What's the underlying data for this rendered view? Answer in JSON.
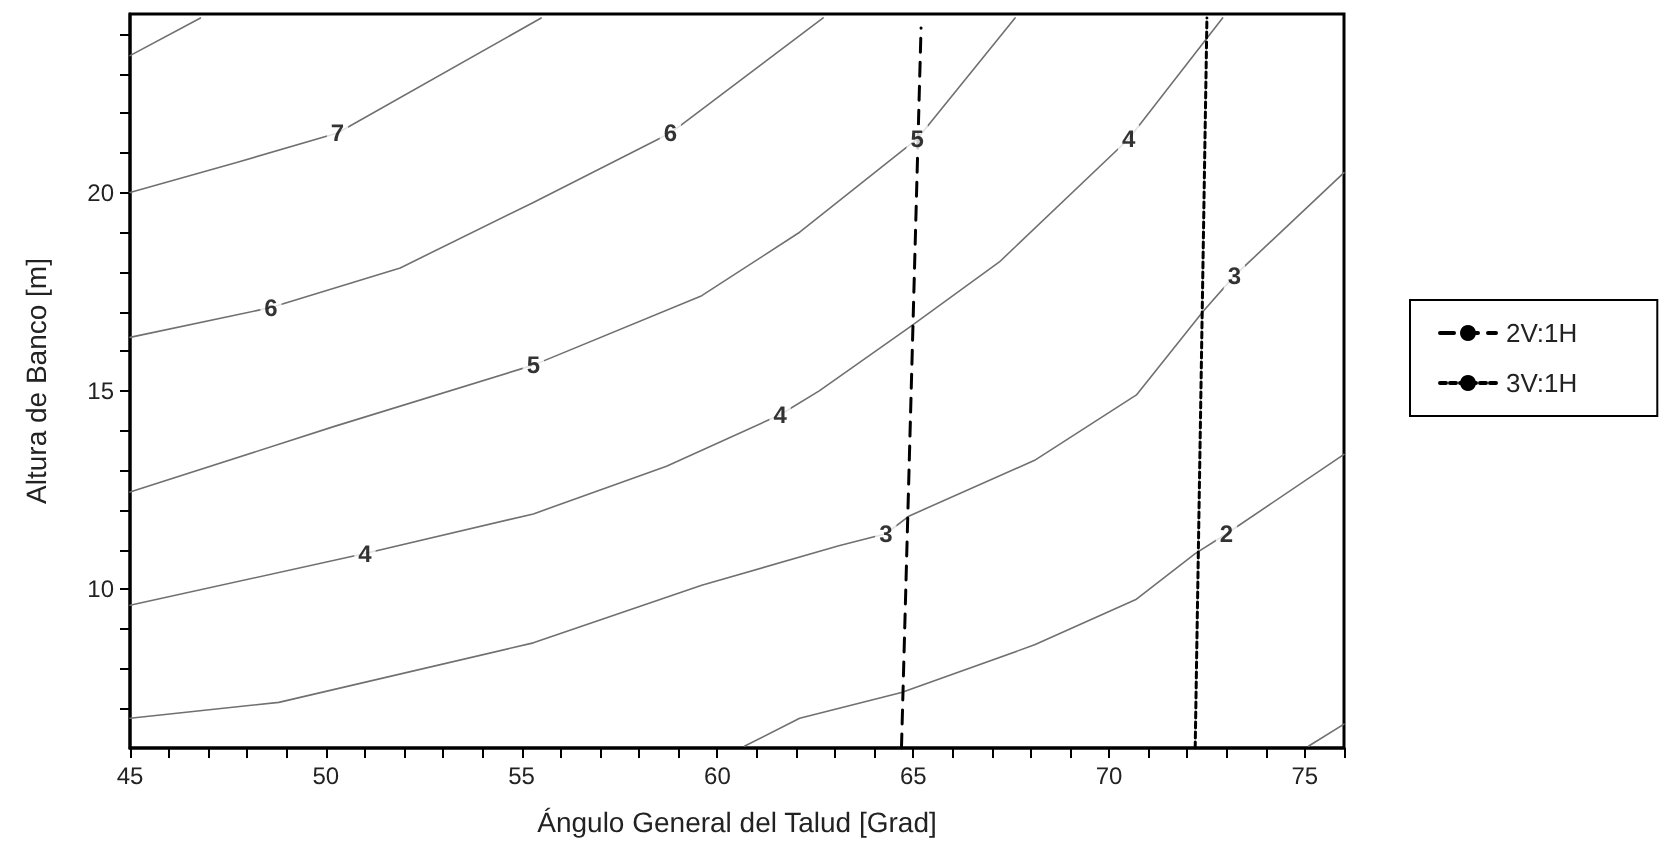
{
  "chart_data": {
    "type": "line",
    "xlabel": "Ángulo General del Talud [Grad]",
    "ylabel": "Altura de Banco [m]",
    "xlim": [
      45,
      76
    ],
    "ylim": [
      6,
      24.5
    ],
    "xticks": [
      45,
      {
        "value": 46,
        "label": null
      },
      {
        "value": 47,
        "label": null
      },
      {
        "value": 48,
        "label": null
      },
      {
        "value": 49,
        "label": null
      },
      50,
      {
        "value": 51,
        "label": null
      },
      {
        "value": 52,
        "label": null
      },
      {
        "value": 53,
        "label": null
      },
      {
        "value": 54,
        "label": null
      },
      55,
      {
        "value": 56,
        "label": null
      },
      {
        "value": 57,
        "label": null
      },
      {
        "value": 58,
        "label": null
      },
      {
        "value": 59,
        "label": null
      },
      60,
      {
        "value": 61,
        "label": null
      },
      {
        "value": 62,
        "label": null
      },
      {
        "value": 63,
        "label": null
      },
      {
        "value": 64,
        "label": null
      },
      65,
      {
        "value": 66,
        "label": null
      },
      {
        "value": 67,
        "label": null
      },
      {
        "value": 68,
        "label": null
      },
      {
        "value": 69,
        "label": null
      },
      70,
      {
        "value": 71,
        "label": null
      },
      {
        "value": 72,
        "label": null
      },
      {
        "value": 73,
        "label": null
      },
      {
        "value": 74,
        "label": null
      },
      75,
      {
        "value": 76,
        "label": null
      }
    ],
    "yticks": [
      {
        "value": 7,
        "label": null
      },
      {
        "value": 8,
        "label": null
      },
      {
        "value": 9,
        "label": null
      },
      10,
      {
        "value": 11,
        "label": null
      },
      {
        "value": 12,
        "label": null
      },
      {
        "value": 13,
        "label": null
      },
      {
        "value": 14,
        "label": null
      },
      15,
      {
        "value": 16,
        "label": null
      },
      {
        "value": 17,
        "label": null
      },
      {
        "value": 18,
        "label": null
      },
      {
        "value": 19,
        "label": null
      },
      20,
      {
        "value": 21,
        "label": null
      },
      {
        "value": 22,
        "label": null
      },
      {
        "value": 23,
        "label": null
      },
      {
        "value": 24,
        "label": null
      }
    ],
    "annotations": [
      {
        "text": "7",
        "x": 50.3,
        "y": 21.5
      },
      {
        "text": "6",
        "x": 48.6,
        "y": 17.1
      },
      {
        "text": "6",
        "x": 58.8,
        "y": 21.5
      },
      {
        "text": "5",
        "x": 55.3,
        "y": 15.65
      },
      {
        "text": "5",
        "x": 65.1,
        "y": 21.35
      },
      {
        "text": "4",
        "x": 51,
        "y": 10.9
      },
      {
        "text": "4",
        "x": 61.6,
        "y": 14.4
      },
      {
        "text": "4",
        "x": 70.5,
        "y": 21.35
      },
      {
        "text": "3",
        "x": 64.3,
        "y": 11.4
      },
      {
        "text": "3",
        "x": 73.2,
        "y": 17.9
      },
      {
        "text": "2",
        "x": 73,
        "y": 11.4
      }
    ],
    "grid": false,
    "legend": "right",
    "marker": "none",
    "series": [
      {
        "color": "#707070",
        "line_style": "solid",
        "x": [
          45,
          46.8
        ],
        "values": [
          23.45,
          24.4
        ]
      },
      {
        "color": "#707070",
        "line_style": "solid",
        "x": [
          45,
          47.7,
          50.3,
          55.5
        ],
        "values": [
          20,
          20.75,
          21.5,
          24.4
        ]
      },
      {
        "color": "#707070",
        "line_style": "solid",
        "x": [
          45,
          48.6,
          51.9,
          55.3,
          58.8,
          62.7
        ],
        "values": [
          16.35,
          17.1,
          18.1,
          19.75,
          21.5,
          24.4
        ]
      },
      {
        "color": "#707070",
        "line_style": "solid",
        "x": [
          45,
          50.2,
          55.3,
          59.6,
          62.1,
          65.1,
          67.6
        ],
        "values": [
          12.45,
          14.1,
          15.65,
          17.4,
          19,
          21.35,
          24.4
        ]
      },
      {
        "color": "#707070",
        "line_style": "solid",
        "x": [
          45,
          51,
          55.3,
          58.7,
          61.6,
          62.6,
          64.9,
          67.2,
          70.5,
          72.9
        ],
        "values": [
          9.6,
          10.9,
          11.9,
          13.1,
          14.4,
          15,
          16.6,
          18.25,
          21.35,
          24.4
        ]
      },
      {
        "color": "#707070",
        "line_style": "solid",
        "x": [
          45,
          48.8,
          55.3,
          59.6,
          63.1,
          64.3,
          64.9,
          68.1,
          70.7,
          72.4,
          73.2,
          76
        ],
        "values": [
          6.75,
          7.15,
          8.65,
          10.1,
          11.1,
          11.4,
          11.85,
          13.25,
          14.9,
          17,
          17.9,
          20.5
        ]
      },
      {
        "color": "#707070",
        "line_style": "solid",
        "x": [
          60.7,
          62.1,
          64.7,
          68.1,
          70.7,
          72.2,
          73,
          76
        ],
        "values": [
          6.05,
          6.75,
          7.4,
          8.6,
          9.75,
          10.9,
          11.4,
          13.4
        ]
      },
      {
        "color": "#707070",
        "line_style": "solid",
        "x": [
          75.1,
          76
        ],
        "values": [
          6.05,
          6.6
        ]
      },
      {
        "name": "2V:1H",
        "color": "#000000",
        "line_style": "dashed",
        "x": [
          64.7,
          65.2
        ],
        "values": [
          6,
          24.15
        ]
      },
      {
        "name": "3V:1H",
        "color": "#000000",
        "line_style": "dotted",
        "x": [
          72.2,
          72.5
        ],
        "values": [
          6,
          24.4
        ]
      }
    ]
  }
}
